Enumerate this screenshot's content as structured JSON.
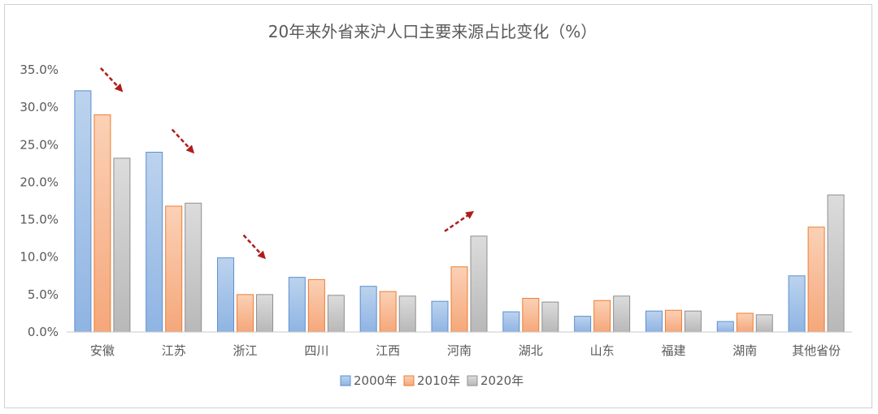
{
  "chart_data": {
    "type": "bar",
    "title": "20年来外省来沪人口主要来源占比变化（%）",
    "categories": [
      "安徽",
      "江苏",
      "浙江",
      "四川",
      "江西",
      "河南",
      "湖北",
      "山东",
      "福建",
      "湖南",
      "其他省份"
    ],
    "series": [
      {
        "name": "2000年",
        "values": [
          32.2,
          24.0,
          9.9,
          7.3,
          6.1,
          4.1,
          2.7,
          2.1,
          2.8,
          1.4,
          7.5
        ]
      },
      {
        "name": "2010年",
        "values": [
          29.0,
          16.8,
          5.0,
          7.0,
          5.4,
          8.7,
          4.5,
          4.2,
          2.9,
          2.5,
          14.0
        ]
      },
      {
        "name": "2020年",
        "values": [
          23.2,
          17.2,
          5.0,
          4.9,
          4.8,
          12.8,
          4.0,
          4.8,
          2.8,
          2.3,
          18.3
        ]
      }
    ],
    "ylim": [
      0,
      35
    ],
    "yticks": [
      "0.0%",
      "5.0%",
      "10.0%",
      "15.0%",
      "20.0%",
      "25.0%",
      "30.0%",
      "35.0%"
    ],
    "grid": false,
    "legend_position": "bottom-center",
    "colors": {
      "2000年": {
        "fill_top": "#bcd3ee",
        "fill_bottom": "#8fb4e3",
        "stroke": "#5b8fd0"
      },
      "2010年": {
        "fill_top": "#fbd1b6",
        "fill_bottom": "#f5a77a",
        "stroke": "#ed7d31"
      },
      "2020年": {
        "fill_top": "#dcdcdc",
        "fill_bottom": "#b8b8b8",
        "stroke": "#8f8f8f"
      }
    },
    "annotations": [
      {
        "type": "arrow",
        "direction": "down",
        "category": "安徽"
      },
      {
        "type": "arrow",
        "direction": "down",
        "category": "江苏"
      },
      {
        "type": "arrow",
        "direction": "down",
        "category": "浙江"
      },
      {
        "type": "arrow",
        "direction": "up",
        "category": "河南"
      }
    ],
    "arrow_color": "#b01c1c"
  }
}
